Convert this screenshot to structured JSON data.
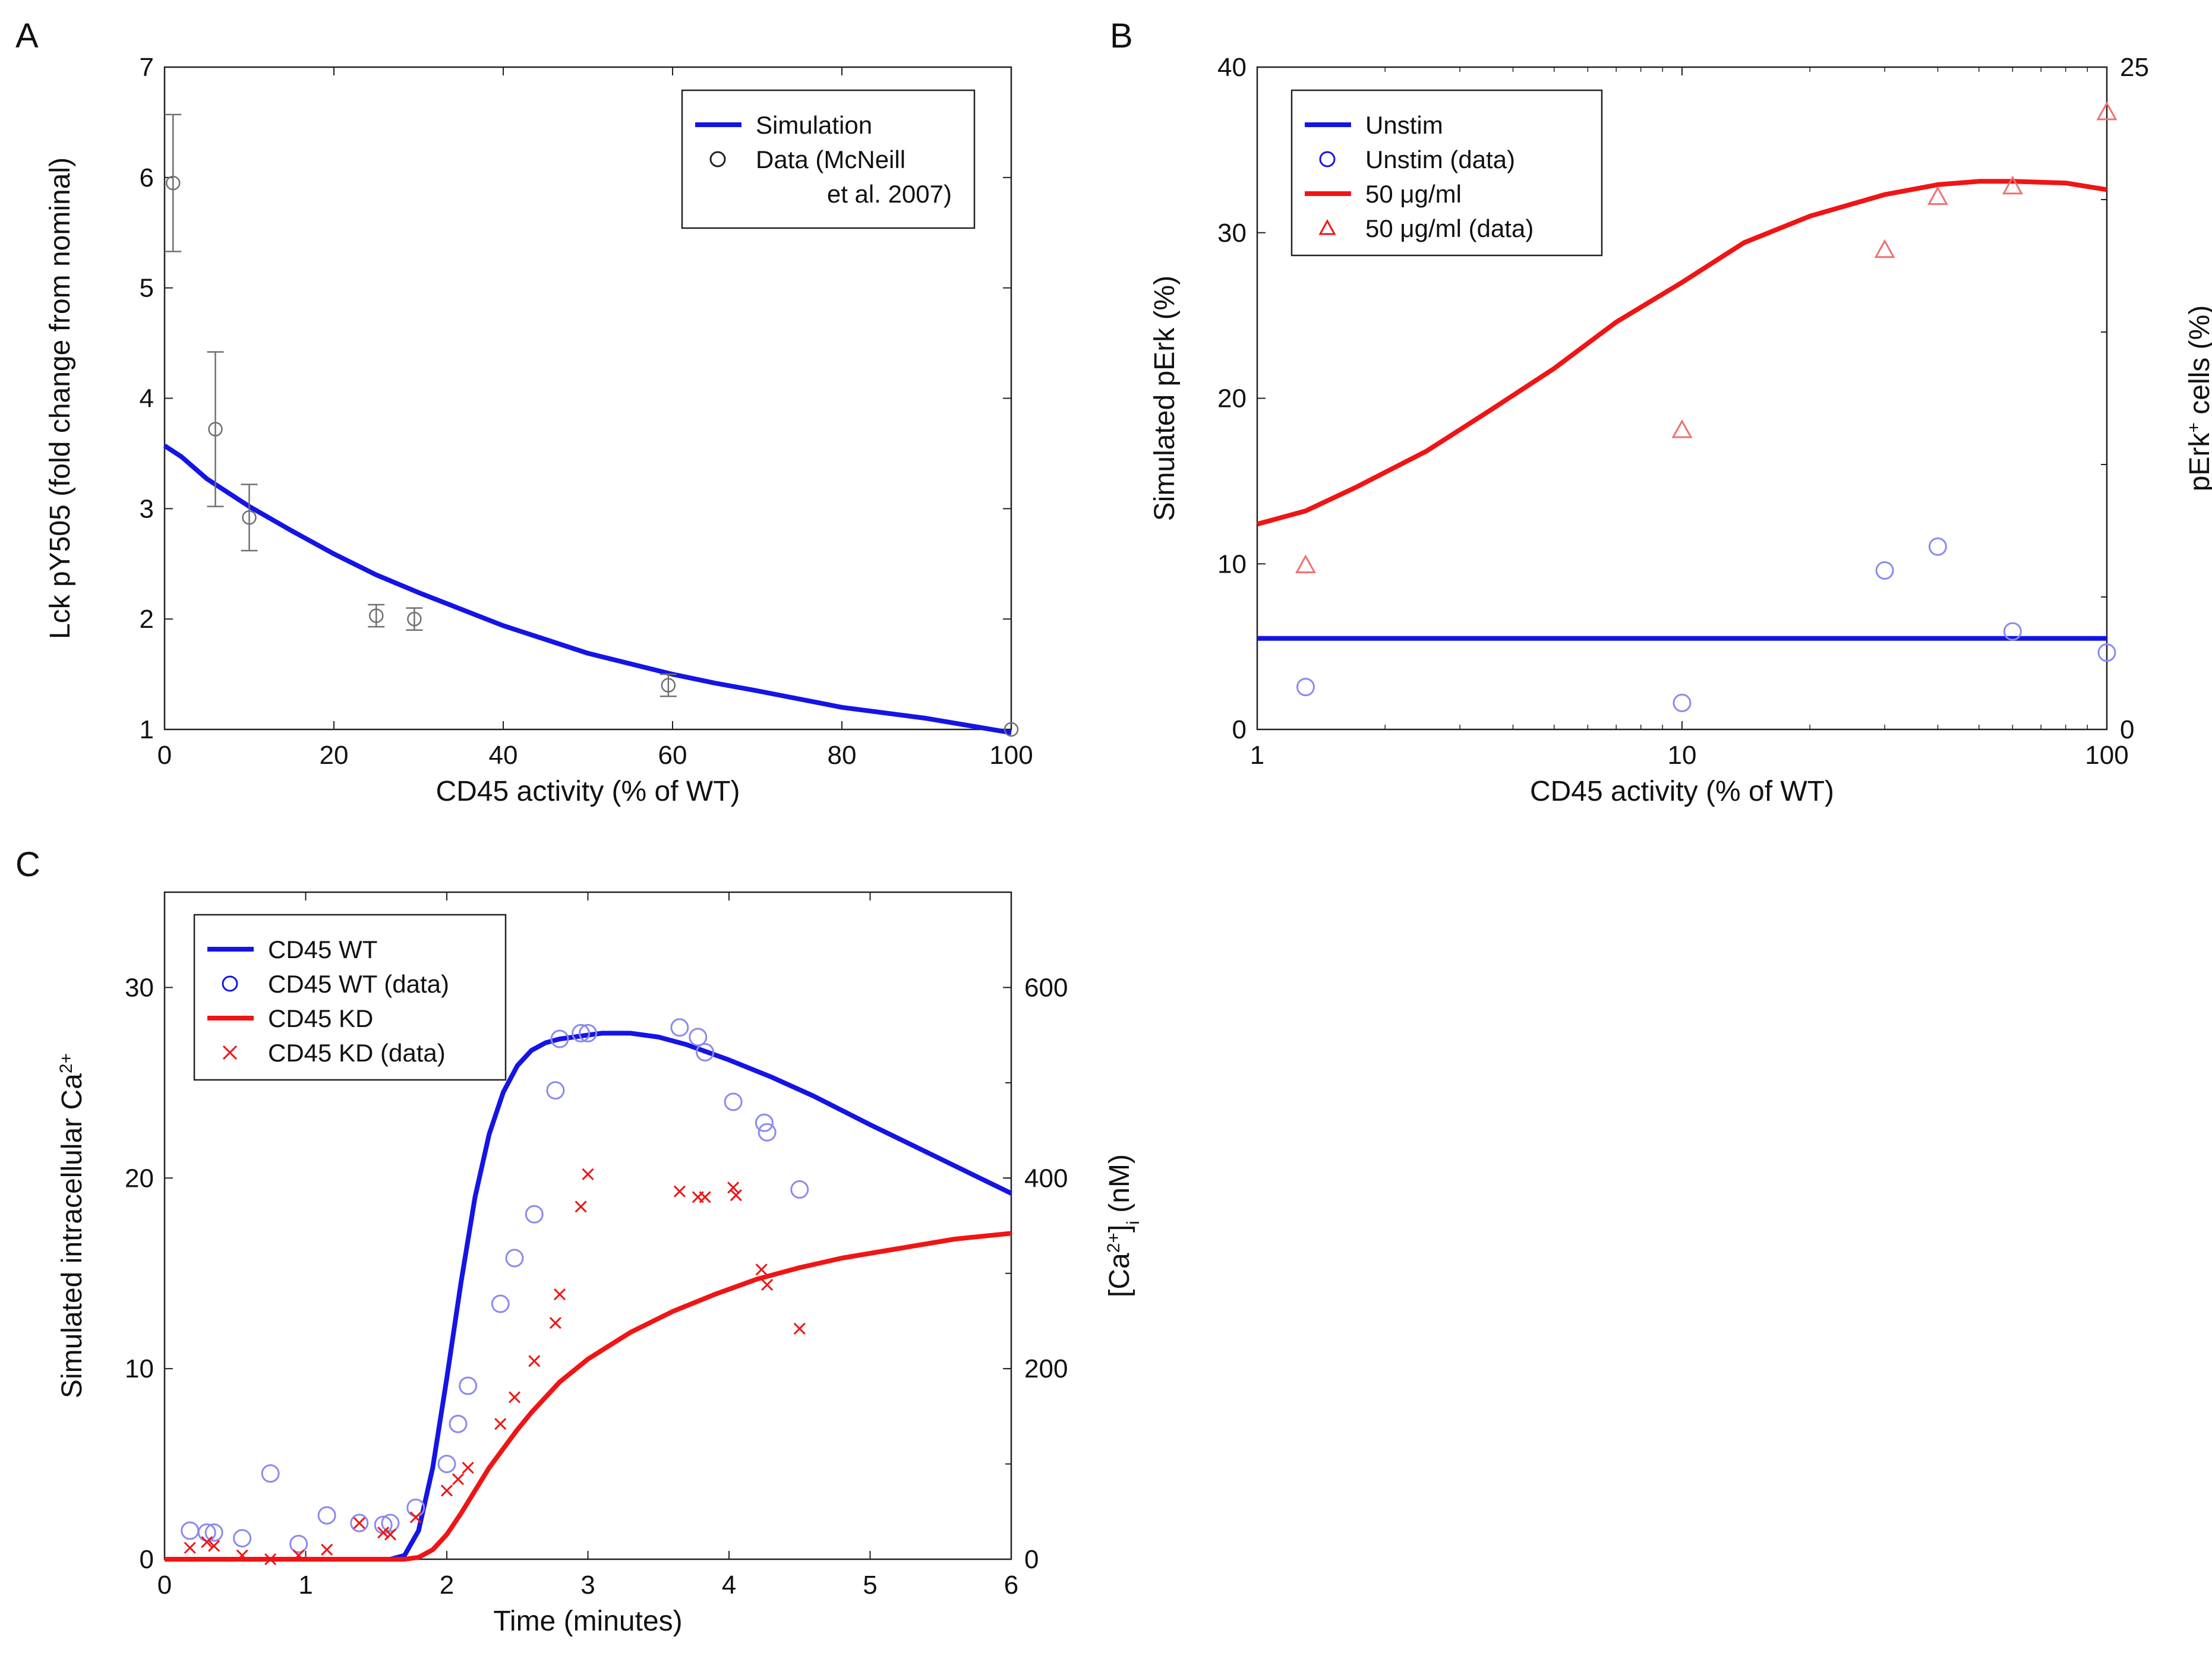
{
  "colors": {
    "simulation_blue": "#1414e6",
    "simulation_red": "#f01414",
    "data_gray": "#707070",
    "data_blue": "#8a8af0",
    "data_red": "#f07070",
    "axis": "#222222"
  },
  "chart_data": [
    {
      "panel": "A",
      "type": "line",
      "title": "",
      "xlabel": "CD45 activity (% of WT)",
      "ylabel": "Lck pY505 (fold change from nominal)",
      "xlim": [
        0,
        100
      ],
      "ylim": [
        1,
        7
      ],
      "xticks": [
        "0",
        "20",
        "40",
        "60",
        "80",
        "100"
      ],
      "yticks": [
        "1",
        "2",
        "3",
        "4",
        "5",
        "6",
        "7"
      ],
      "legend": {
        "position": "top-right",
        "entries": [
          "Simulation",
          "Data (McNeill",
          "et al. 2007)"
        ]
      },
      "series": [
        {
          "name": "Simulation",
          "kind": "line",
          "color": "#1414e6",
          "x": [
            0,
            2,
            5,
            10,
            15,
            20,
            25,
            30,
            40,
            50,
            60,
            65,
            70,
            80,
            90,
            100
          ],
          "y": [
            3.57,
            3.47,
            3.27,
            3.02,
            2.8,
            2.59,
            2.4,
            2.24,
            1.94,
            1.69,
            1.5,
            1.42,
            1.35,
            1.2,
            1.1,
            0.97
          ]
        },
        {
          "name": "Data (McNeill et al. 2007)",
          "kind": "errorbar",
          "color": "#707070",
          "x": [
            1,
            6,
            10,
            25,
            29.5,
            59.5,
            100
          ],
          "y": [
            5.95,
            3.72,
            2.92,
            2.03,
            2.0,
            1.4,
            1.0
          ],
          "err": [
            0.62,
            0.7,
            0.3,
            0.1,
            0.1,
            0.1,
            0
          ]
        }
      ]
    },
    {
      "panel": "B",
      "type": "line",
      "title": "",
      "xlabel": "CD45 activity (% of WT)",
      "ylabel": "Simulated pErk (%)",
      "ylabel_right": "pErk+ cells (%)",
      "xscale": "log",
      "xlim": [
        1,
        100
      ],
      "ylim": [
        0,
        40
      ],
      "ylim_right": [
        0,
        25
      ],
      "xticks": [
        "1",
        "10",
        "100"
      ],
      "yticks": [
        "0",
        "10",
        "20",
        "30",
        "40"
      ],
      "yticks_right": [
        "0",
        "25"
      ],
      "legend": {
        "position": "top-left",
        "entries": [
          "Unstim",
          "Unstim (data)",
          "50 μg/ml",
          "50 μg/ml (data)"
        ]
      },
      "series": [
        {
          "name": "Unstim",
          "kind": "line",
          "color": "#1414e6",
          "x": [
            1,
            100
          ],
          "y": [
            5.5,
            5.5
          ]
        },
        {
          "name": "Unstim (data)",
          "kind": "circle",
          "color": "#8a8af0",
          "axis": "right",
          "x": [
            1.3,
            10,
            30,
            40,
            60,
            100
          ],
          "y": [
            1.6,
            1.0,
            6.0,
            6.9,
            3.7,
            2.9
          ]
        },
        {
          "name": "50 μg/ml",
          "kind": "line",
          "color": "#f01414",
          "x": [
            1,
            1.3,
            1.7,
            2.5,
            3.5,
            5,
            7,
            10,
            14,
            20,
            30,
            40,
            50,
            60,
            80,
            100
          ],
          "y": [
            12.4,
            13.2,
            14.6,
            16.8,
            19.2,
            21.8,
            24.6,
            27.0,
            29.4,
            31.0,
            32.3,
            32.9,
            33.1,
            33.1,
            33.0,
            32.6
          ]
        },
        {
          "name": "50 μg/ml (data)",
          "kind": "triangle",
          "color": "#f07070",
          "axis": "right",
          "x": [
            1.3,
            10,
            30,
            40,
            60,
            100
          ],
          "y": [
            6.2,
            11.3,
            18.1,
            20.1,
            20.5,
            23.3
          ]
        }
      ]
    },
    {
      "panel": "C",
      "type": "line",
      "title": "",
      "xlabel": "Time (minutes)",
      "ylabel": "Simulated intracellular Ca2+",
      "ylabel_right": "[Ca2+]i (nM)",
      "xlim": [
        0,
        6
      ],
      "ylim": [
        0,
        35
      ],
      "ylim_right": [
        0,
        700
      ],
      "xticks": [
        "0",
        "1",
        "2",
        "3",
        "4",
        "5",
        "6"
      ],
      "yticks": [
        "0",
        "10",
        "20",
        "30"
      ],
      "yticks_right": [
        "0",
        "200",
        "400",
        "600"
      ],
      "legend": {
        "position": "top-left",
        "entries": [
          "CD45 WT",
          "CD45 WT (data)",
          "CD45 KD",
          "CD45 KD (data)"
        ]
      },
      "series": [
        {
          "name": "CD45 WT",
          "kind": "line",
          "color": "#1414e6",
          "x": [
            0,
            1.6,
            1.7,
            1.8,
            1.9,
            2.0,
            2.1,
            2.2,
            2.3,
            2.4,
            2.5,
            2.6,
            2.7,
            2.8,
            2.9,
            3.0,
            3.1,
            3.3,
            3.5,
            3.7,
            4.0,
            4.3,
            4.6,
            5.0,
            5.5,
            6.0
          ],
          "y": [
            0,
            0,
            0.2,
            1.5,
            4.8,
            9.5,
            14.5,
            19.0,
            22.3,
            24.5,
            25.9,
            26.7,
            27.1,
            27.3,
            27.4,
            27.5,
            27.6,
            27.6,
            27.4,
            27.0,
            26.2,
            25.3,
            24.3,
            22.8,
            21.0,
            19.2
          ]
        },
        {
          "name": "CD45 WT (data)",
          "kind": "circle",
          "color": "#8a8af0",
          "x": [
            0.18,
            0.3,
            0.35,
            0.55,
            0.75,
            0.95,
            1.15,
            1.38,
            1.55,
            1.6,
            1.78,
            2.0,
            2.08,
            2.15,
            2.38,
            2.48,
            2.62,
            2.77,
            2.8,
            2.95,
            3.0,
            3.65,
            3.78,
            3.83,
            4.03,
            4.25,
            4.27,
            4.5
          ],
          "y": [
            1.5,
            1.4,
            1.4,
            1.1,
            4.5,
            0.8,
            2.3,
            1.9,
            1.8,
            1.9,
            2.7,
            5.0,
            7.1,
            9.1,
            13.4,
            15.8,
            18.1,
            24.6,
            27.3,
            27.6,
            27.6,
            27.9,
            27.4,
            26.6,
            24.0,
            22.9,
            22.4,
            19.4
          ]
        },
        {
          "name": "CD45 KD",
          "kind": "line",
          "color": "#f01414",
          "x": [
            0,
            1.7,
            1.8,
            1.9,
            2.0,
            2.1,
            2.2,
            2.3,
            2.4,
            2.5,
            2.6,
            2.8,
            3.0,
            3.3,
            3.6,
            3.9,
            4.2,
            4.5,
            4.8,
            5.2,
            5.6,
            6.0
          ],
          "y": [
            0,
            0,
            0.1,
            0.5,
            1.3,
            2.4,
            3.6,
            4.8,
            5.8,
            6.8,
            7.7,
            9.3,
            10.5,
            11.9,
            13.0,
            13.9,
            14.7,
            15.3,
            15.8,
            16.3,
            16.8,
            17.1
          ]
        },
        {
          "name": "CD45 KD (data)",
          "kind": "cross",
          "color": "#f01414",
          "x": [
            0.18,
            0.3,
            0.35,
            0.55,
            0.75,
            0.95,
            1.15,
            1.38,
            1.55,
            1.6,
            1.78,
            2.0,
            2.08,
            2.15,
            2.38,
            2.48,
            2.62,
            2.77,
            2.8,
            2.95,
            3.0,
            3.65,
            3.78,
            3.83,
            4.03,
            4.05,
            4.23,
            4.27,
            4.5
          ],
          "y": [
            0.6,
            0.9,
            0.7,
            0.2,
            0.0,
            0.2,
            0.5,
            1.9,
            1.4,
            1.3,
            2.2,
            3.6,
            4.2,
            4.8,
            7.1,
            8.5,
            10.4,
            12.4,
            13.9,
            18.5,
            20.2,
            19.3,
            19.0,
            19.0,
            19.5,
            19.1,
            15.2,
            14.4,
            12.1
          ]
        }
      ]
    }
  ]
}
